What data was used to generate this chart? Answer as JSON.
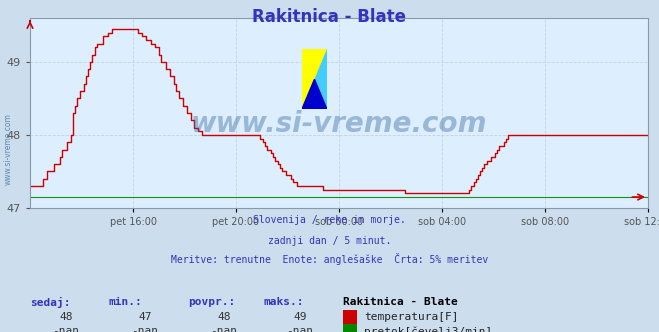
{
  "title": "Rakitnica - Blate",
  "title_color": "#3333bb",
  "bg_color": "#ccdded",
  "plot_bg_color": "#ddeeff",
  "grid_color": "#bbccdd",
  "watermark": "www.si-vreme.com",
  "subtitle_lines": [
    "Slovenija / reke in morje.",
    "zadnji dan / 5 minut.",
    "Meritve: trenutne  Enote: anglešaške  Črta: 5% meritev"
  ],
  "xlabel_ticks": [
    "pet 16:00",
    "pet 20:00",
    "sob 00:00",
    "sob 04:00",
    "sob 08:00",
    "sob 12:00"
  ],
  "ylim_min": 47.15,
  "ylim_max": 49.6,
  "yticks": [
    47,
    48,
    49
  ],
  "line_color": "#cc0000",
  "line_color2": "#008800",
  "sedaj": "48",
  "min_val": "47",
  "povpr": "48",
  "maks": "49",
  "station": "Rakitnica - Blate",
  "legend1": "temperatura[F]",
  "legend2": "pretok[čevelj3/min]",
  "legend1_color": "#cc0000",
  "legend2_color": "#008800",
  "table_headers": [
    "sedaj:",
    "min.:",
    "povpr.:",
    "maks.:"
  ],
  "table_values": [
    "48",
    "47",
    "48",
    "49"
  ],
  "table_values2": [
    "-nan",
    "-nan",
    "-nan",
    "-nan"
  ],
  "table_color": "#3333bb",
  "temp_data": [
    47.3,
    47.3,
    47.3,
    47.3,
    47.3,
    47.3,
    47.4,
    47.4,
    47.5,
    47.5,
    47.5,
    47.6,
    47.6,
    47.6,
    47.7,
    47.8,
    47.8,
    47.9,
    47.9,
    48.0,
    48.3,
    48.4,
    48.5,
    48.6,
    48.6,
    48.7,
    48.8,
    48.9,
    49.0,
    49.1,
    49.2,
    49.25,
    49.25,
    49.25,
    49.35,
    49.35,
    49.4,
    49.4,
    49.45,
    49.45,
    49.45,
    49.45,
    49.45,
    49.45,
    49.45,
    49.45,
    49.45,
    49.45,
    49.45,
    49.45,
    49.4,
    49.4,
    49.35,
    49.35,
    49.3,
    49.3,
    49.25,
    49.25,
    49.2,
    49.2,
    49.1,
    49.0,
    49.0,
    48.9,
    48.9,
    48.8,
    48.8,
    48.7,
    48.6,
    48.5,
    48.5,
    48.4,
    48.4,
    48.3,
    48.3,
    48.2,
    48.1,
    48.1,
    48.05,
    48.05,
    48.0,
    48.0,
    48.0,
    48.0,
    48.0,
    48.0,
    48.0,
    48.0,
    48.0,
    48.0,
    48.0,
    48.0,
    48.0,
    48.0,
    48.0,
    48.0,
    48.0,
    48.0,
    48.0,
    48.0,
    48.0,
    48.0,
    48.0,
    48.0,
    48.0,
    48.0,
    48.0,
    47.95,
    47.9,
    47.85,
    47.8,
    47.8,
    47.75,
    47.7,
    47.65,
    47.6,
    47.55,
    47.5,
    47.5,
    47.45,
    47.45,
    47.4,
    47.35,
    47.35,
    47.3,
    47.3,
    47.3,
    47.3,
    47.3,
    47.3,
    47.3,
    47.3,
    47.3,
    47.3,
    47.3,
    47.3,
    47.25,
    47.25,
    47.25,
    47.25,
    47.25,
    47.25,
    47.25,
    47.25,
    47.25,
    47.25,
    47.25,
    47.25,
    47.25,
    47.25,
    47.25,
    47.25,
    47.25,
    47.25,
    47.25,
    47.25,
    47.25,
    47.25,
    47.25,
    47.25,
    47.25,
    47.25,
    47.25,
    47.25,
    47.25,
    47.25,
    47.25,
    47.25,
    47.25,
    47.25,
    47.25,
    47.25,
    47.25,
    47.25,
    47.2,
    47.2,
    47.2,
    47.2,
    47.2,
    47.2,
    47.2,
    47.2,
    47.2,
    47.2,
    47.2,
    47.2,
    47.2,
    47.2,
    47.2,
    47.2,
    47.2,
    47.2,
    47.2,
    47.2,
    47.2,
    47.2,
    47.2,
    47.2,
    47.2,
    47.2,
    47.2,
    47.2,
    47.2,
    47.2,
    47.25,
    47.3,
    47.35,
    47.4,
    47.45,
    47.5,
    47.55,
    47.6,
    47.65,
    47.65,
    47.7,
    47.7,
    47.75,
    47.8,
    47.85,
    47.85,
    47.9,
    47.95,
    48.0,
    48.0
  ]
}
